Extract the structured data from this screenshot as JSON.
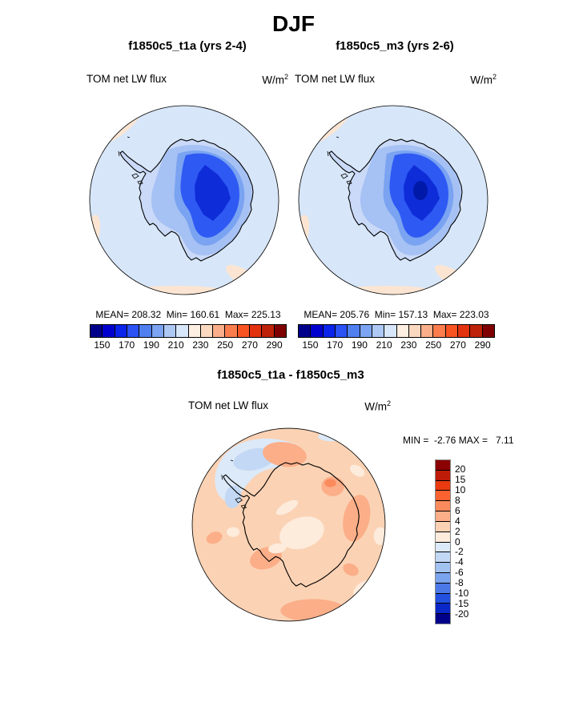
{
  "title": "DJF",
  "panels": {
    "left": {
      "subtitle": "f1850c5_t1a (yrs 2-4)",
      "var_label": "TOM net LW flux",
      "units": "W/m",
      "units_exp": "2",
      "stats": "MEAN= 208.32  Min= 160.61  Max= 225.13"
    },
    "right": {
      "subtitle": "f1850c5_m3 (yrs 2-6)",
      "var_label": "TOM net LW flux",
      "units": "W/m",
      "units_exp": "2",
      "stats": "MEAN= 205.76  Min= 157.13  Max= 223.03"
    },
    "diff": {
      "title": "f1850c5_t1a - f1850c5_m3",
      "var_label": "TOM net LW flux",
      "units": "W/m",
      "units_exp": "2",
      "stats": "MIN =  -2.76 MAX =   7.11"
    }
  },
  "colorbar_top": {
    "palette": "flux",
    "tick_labels": [
      "150",
      "170",
      "190",
      "210",
      "230",
      "250",
      "270",
      "290"
    ]
  },
  "colorbar_diff": {
    "palette": "diff",
    "tick_labels": [
      "20",
      "15",
      "10",
      "8",
      "6",
      "4",
      "2",
      "0",
      "-2",
      "-4",
      "-6",
      "-8",
      "-10",
      "-15",
      "-20"
    ]
  },
  "palettes": {
    "flux": [
      "#00008B",
      "#0000CE",
      "#0B24EB",
      "#2A52F5",
      "#5080F0",
      "#7DA4F2",
      "#AEC8F4",
      "#D8E6FA",
      "#FDEFE2",
      "#FBD9C0",
      "#FAAF8A",
      "#FB7D4E",
      "#F85422",
      "#E3320E",
      "#BE2208",
      "#7E0000"
    ],
    "diff": [
      "#8B0000",
      "#BE1C08",
      "#E93A10",
      "#FA6230",
      "#FB8A5C",
      "#FBAE88",
      "#FBD2B4",
      "#FDEBDC",
      "#DCE9F8",
      "#C2D8F4",
      "#A2C2F0",
      "#7BA4EE",
      "#4B79E8",
      "#2250E0",
      "#0A28C8",
      "#00008B"
    ],
    "map": {
      "ocean": "#D7E6F9",
      "rim_warm": "#FBE5D2",
      "land1": "#C9D9F7",
      "land2": "#A6C1F4",
      "land3": "#7AA3F1",
      "land4": "#2E59F3",
      "land5": "#0E2CD8",
      "land6": "#0019A8",
      "ink": "#000000",
      "diff_base": "#FBD2B4",
      "diff_cream": "#FDEBDC",
      "diff_salmon": "#FBAE88",
      "diff_orange": "#FB8A5C",
      "diff_blue_pale": "#DCE9F8",
      "diff_blue": "#C2D8F4"
    }
  },
  "chart_data": [
    {
      "type": "heatmap",
      "subtype": "south-polar-contour-map",
      "title": "f1850c5_t1a (yrs 2-4)",
      "variable": "TOM net LW flux",
      "units": "W/m^2",
      "levels": [
        140,
        150,
        160,
        170,
        180,
        190,
        200,
        210,
        220,
        230,
        240,
        250,
        260,
        270,
        280,
        290,
        300
      ],
      "palette": "flux",
      "stats": {
        "mean": 208.32,
        "min": 160.61,
        "max": 225.13
      }
    },
    {
      "type": "heatmap",
      "subtype": "south-polar-contour-map",
      "title": "f1850c5_m3 (yrs 2-6)",
      "variable": "TOM net LW flux",
      "units": "W/m^2",
      "levels": [
        140,
        150,
        160,
        170,
        180,
        190,
        200,
        210,
        220,
        230,
        240,
        250,
        260,
        270,
        280,
        290,
        300
      ],
      "palette": "flux",
      "stats": {
        "mean": 205.76,
        "min": 157.13,
        "max": 223.03
      }
    },
    {
      "type": "heatmap",
      "subtype": "south-polar-contour-map-difference",
      "title": "f1850c5_t1a - f1850c5_m3",
      "variable": "TOM net LW flux",
      "units": "W/m^2",
      "levels": [
        -20,
        -15,
        -10,
        -8,
        -6,
        -4,
        -2,
        0,
        2,
        4,
        6,
        8,
        10,
        15,
        20
      ],
      "palette": "diff",
      "stats": {
        "min": -2.76,
        "max": 7.11
      }
    }
  ]
}
